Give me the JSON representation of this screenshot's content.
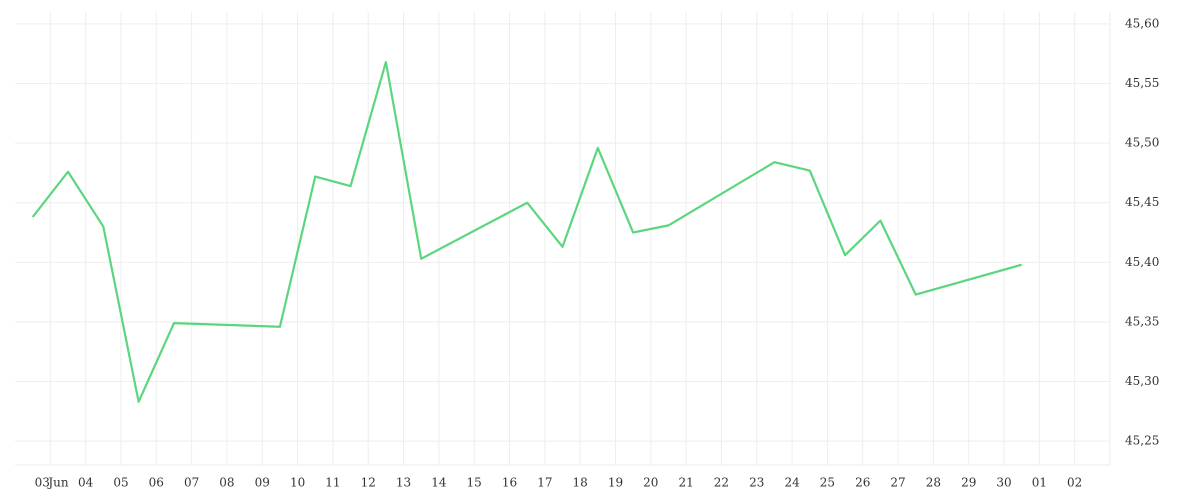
{
  "chart_data": {
    "type": "line",
    "x": [
      2,
      3,
      4,
      5,
      6,
      9,
      10,
      11,
      12,
      13,
      16,
      17,
      18,
      19,
      20,
      23,
      24,
      25,
      26,
      27,
      30
    ],
    "series": [
      {
        "color": "#5cd67e",
        "values": [
          45.438,
          45.476,
          45.43,
          45.283,
          45.349,
          45.346,
          45.472,
          45.464,
          45.568,
          45.403,
          45.45,
          45.413,
          45.496,
          45.425,
          45.431,
          45.484,
          45.477,
          45.406,
          45.435,
          45.373,
          45.398
        ]
      }
    ],
    "xlim": [
      2,
      33
    ],
    "xticks": [
      {
        "value": 3,
        "label": "03"
      },
      {
        "value": 4,
        "label": "04"
      },
      {
        "value": 5,
        "label": "05"
      },
      {
        "value": 6,
        "label": "06"
      },
      {
        "value": 7,
        "label": "07"
      },
      {
        "value": 8,
        "label": "08"
      },
      {
        "value": 9,
        "label": "09"
      },
      10,
      11,
      12,
      13,
      14,
      15,
      16,
      17,
      18,
      19,
      20,
      21,
      22,
      23,
      24,
      25,
      26,
      27,
      28,
      29,
      30,
      {
        "value": 31,
        "label": "01"
      },
      {
        "value": 32,
        "label": "02"
      }
    ],
    "x_month": {
      "value": 3,
      "label": "Jun"
    },
    "ylim": [
      45.23,
      45.61
    ],
    "yticks": [
      {
        "value": 45.25,
        "label": "45,25"
      },
      {
        "value": 45.3,
        "label": "45,30"
      },
      {
        "value": 45.35,
        "label": "45,35"
      },
      {
        "value": 45.4,
        "label": "45,40"
      },
      {
        "value": 45.45,
        "label": "45,45"
      },
      {
        "value": 45.5,
        "label": "45,50"
      },
      {
        "value": 45.55,
        "label": "45,55"
      },
      {
        "value": 45.6,
        "label": "45,60"
      }
    ],
    "grid": true
  }
}
